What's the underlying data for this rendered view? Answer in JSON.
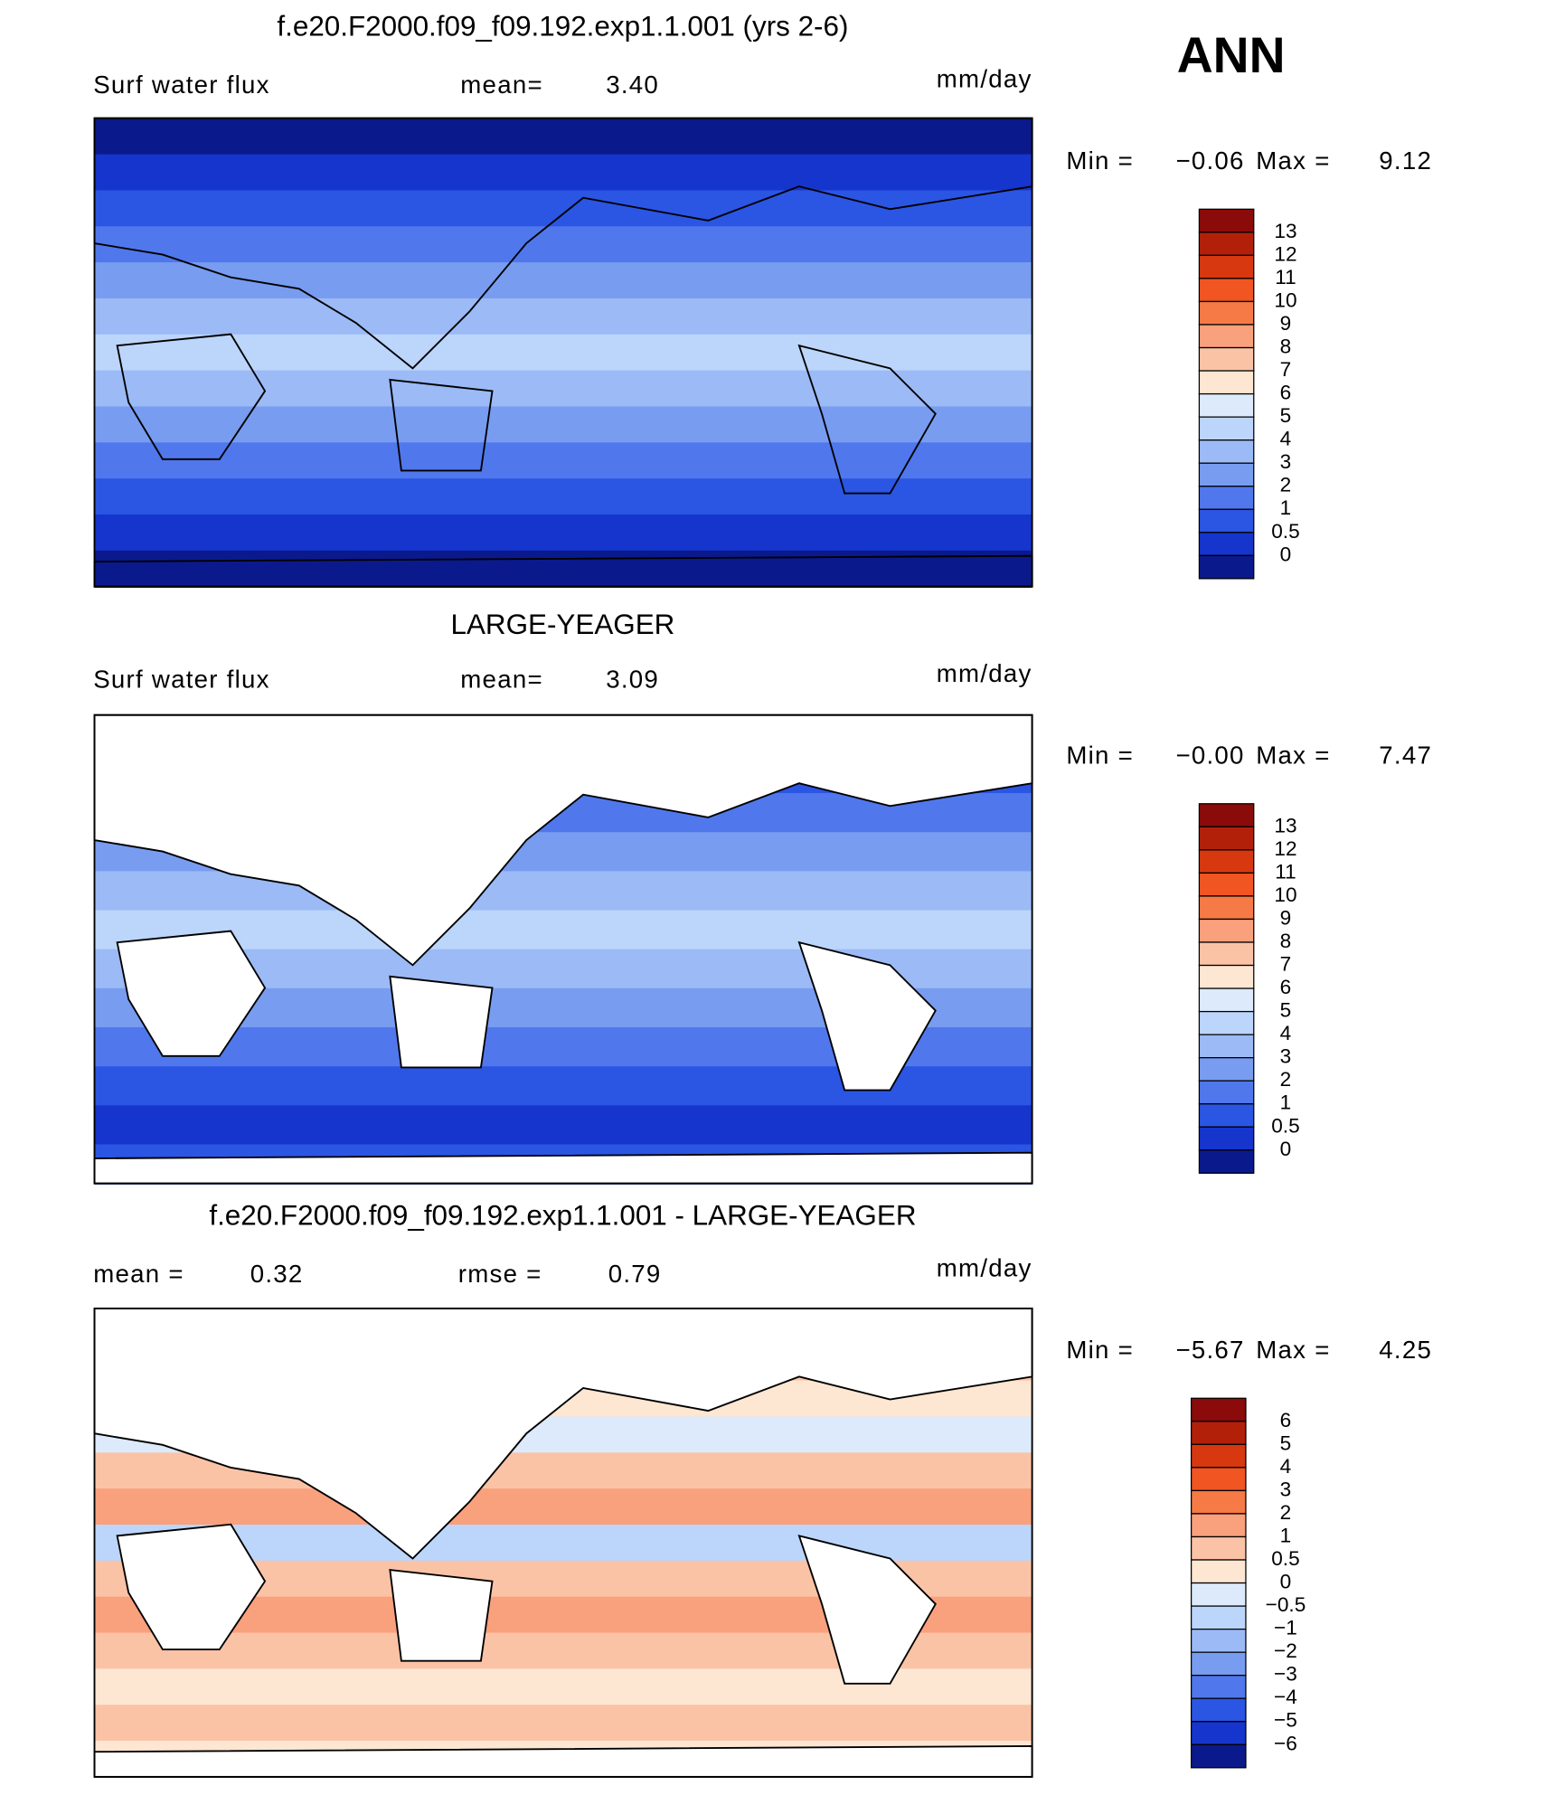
{
  "header": {
    "season": "ANN"
  },
  "panels": [
    {
      "title": "f.e20.F2000.f09_f09.192.exp1.1.001 (yrs 2-6)",
      "field": "Surf water flux",
      "stats": [
        {
          "label": "mean=",
          "value": "3.40"
        }
      ],
      "units": "mm/day",
      "min_label": "Min =",
      "min": "−0.06",
      "max_label": "Max =",
      "max": "9.12",
      "colorbar": {
        "labels": [
          "13",
          "12",
          "11",
          "10",
          "9",
          "8",
          "7",
          "6",
          "5",
          "4",
          "3",
          "2",
          "1",
          "0.5",
          "0"
        ],
        "colors": [
          "#8b0a0a",
          "#b3200a",
          "#d8380f",
          "#f05522",
          "#f67a45",
          "#f9a07c",
          "#fbc3a6",
          "#fde6d2",
          "#dceafb",
          "#bcd5fb",
          "#9bbaf6",
          "#789cf0",
          "#5078ec",
          "#2b55e3",
          "#1535cc",
          "#0a1a8c"
        ]
      }
    },
    {
      "title": "LARGE-YEAGER",
      "field": "Surf water flux",
      "stats": [
        {
          "label": "mean=",
          "value": "3.09"
        }
      ],
      "units": "mm/day",
      "min_label": "Min =",
      "min": "−0.00",
      "max_label": "Max =",
      "max": "7.47",
      "colorbar": {
        "labels": [
          "13",
          "12",
          "11",
          "10",
          "9",
          "8",
          "7",
          "6",
          "5",
          "4",
          "3",
          "2",
          "1",
          "0.5",
          "0"
        ],
        "colors": [
          "#8b0a0a",
          "#b3200a",
          "#d8380f",
          "#f05522",
          "#f67a45",
          "#f9a07c",
          "#fbc3a6",
          "#fde6d2",
          "#dceafb",
          "#bcd5fb",
          "#9bbaf6",
          "#789cf0",
          "#5078ec",
          "#2b55e3",
          "#1535cc",
          "#0a1a8c"
        ]
      }
    },
    {
      "title": "f.e20.F2000.f09_f09.192.exp1.1.001 - LARGE-YEAGER",
      "stats": [
        {
          "label": "mean =",
          "value": "0.32"
        },
        {
          "label": "rmse =",
          "value": "0.79"
        }
      ],
      "units": "mm/day",
      "min_label": "Min =",
      "min": "−5.67",
      "max_label": "Max =",
      "max": "4.25",
      "colorbar": {
        "labels": [
          "6",
          "5",
          "4",
          "3",
          "2",
          "1",
          "0.5",
          "0",
          "−0.5",
          "−1",
          "−2",
          "−3",
          "−4",
          "−5",
          "−6"
        ],
        "colors": [
          "#8b0a0a",
          "#b3200a",
          "#d8380f",
          "#f05522",
          "#f67a45",
          "#f9a07c",
          "#fbc3a6",
          "#fde6d2",
          "#dceafb",
          "#bcd5fb",
          "#9bbaf6",
          "#789cf0",
          "#5078ec",
          "#2b55e3",
          "#1535cc",
          "#0a1a8c"
        ]
      }
    }
  ]
}
